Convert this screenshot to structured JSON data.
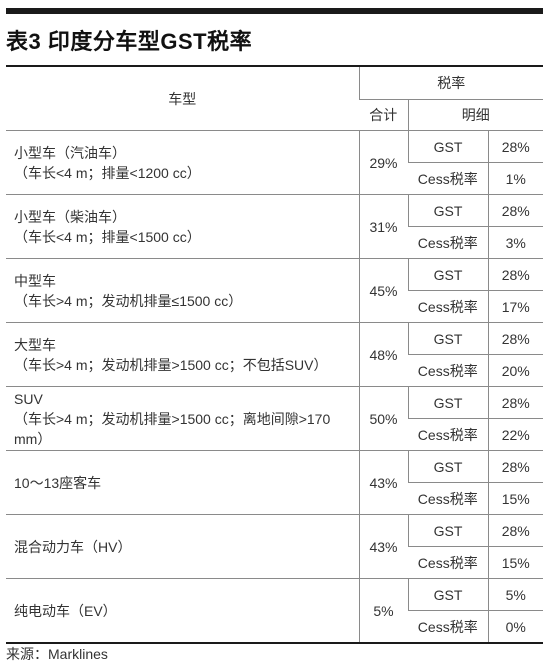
{
  "title": "表3 印度分车型GST税率",
  "headers": {
    "vehicle_type": "车型",
    "tax_rate": "税率",
    "total": "合计",
    "detail": "明细"
  },
  "rows": [
    {
      "type_line1": "小型车（汽油车）",
      "type_line2": "（车长<4 m；排量<1200 cc）",
      "total": "29%",
      "items": [
        {
          "name": "GST",
          "rate": "28%"
        },
        {
          "name": "Cess税率",
          "rate": "1%"
        }
      ]
    },
    {
      "type_line1": "小型车（柴油车）",
      "type_line2": "（车长<4 m；排量<1500 cc）",
      "total": "31%",
      "items": [
        {
          "name": "GST",
          "rate": "28%"
        },
        {
          "name": "Cess税率",
          "rate": "3%"
        }
      ]
    },
    {
      "type_line1": "中型车",
      "type_line2": "（车长>4 m；发动机排量≤1500 cc）",
      "total": "45%",
      "items": [
        {
          "name": "GST",
          "rate": "28%"
        },
        {
          "name": "Cess税率",
          "rate": "17%"
        }
      ]
    },
    {
      "type_line1": "大型车",
      "type_line2": "（车长>4 m；发动机排量>1500 cc；不包括SUV）",
      "total": "48%",
      "items": [
        {
          "name": "GST",
          "rate": "28%"
        },
        {
          "name": "Cess税率",
          "rate": "20%"
        }
      ]
    },
    {
      "type_line1": "SUV",
      "type_line2": "（车长>4 m；发动机排量>1500 cc；离地间隙>170 mm）",
      "total": "50%",
      "items": [
        {
          "name": "GST",
          "rate": "28%"
        },
        {
          "name": "Cess税率",
          "rate": "22%"
        }
      ]
    },
    {
      "type_line1": "10～13座客车",
      "type_line2": "",
      "total": "43%",
      "items": [
        {
          "name": "GST",
          "rate": "28%"
        },
        {
          "name": "Cess税率",
          "rate": "15%"
        }
      ]
    },
    {
      "type_line1": "混合动力车（HV）",
      "type_line2": "",
      "total": "43%",
      "items": [
        {
          "name": "GST",
          "rate": "28%"
        },
        {
          "name": "Cess税率",
          "rate": "15%"
        }
      ]
    },
    {
      "type_line1": "纯电动车（EV）",
      "type_line2": "",
      "total": "5%",
      "items": [
        {
          "name": "GST",
          "rate": "5%"
        },
        {
          "name": "Cess税率",
          "rate": "0%"
        }
      ]
    }
  ],
  "source": "来源：Marklines"
}
